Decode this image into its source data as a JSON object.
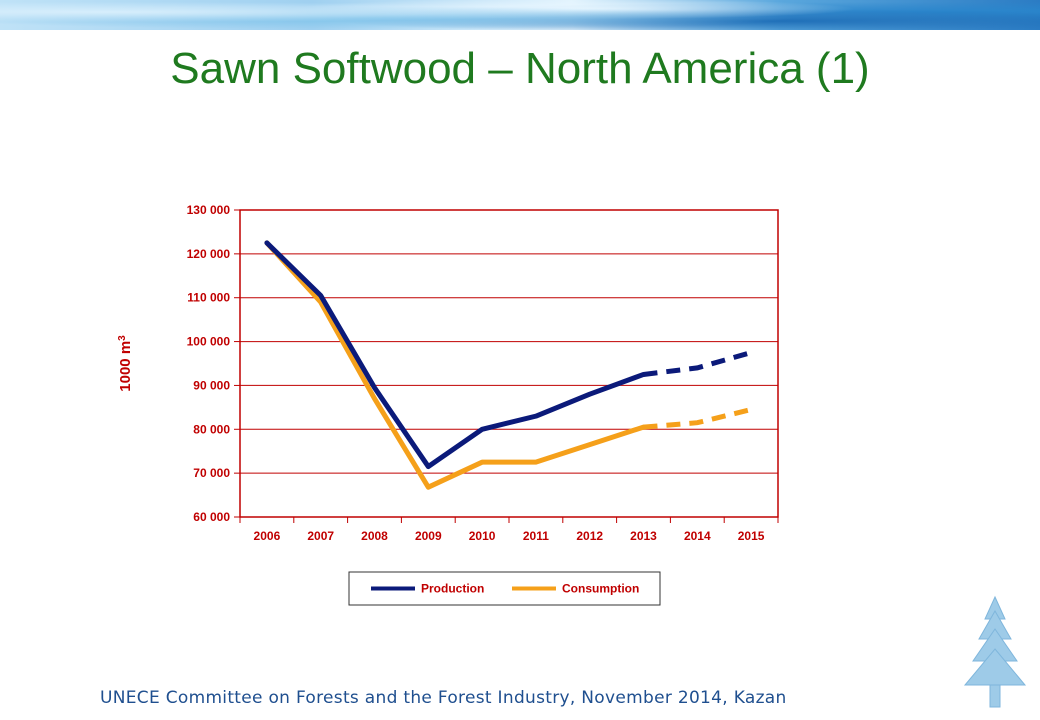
{
  "slide": {
    "title": "Sawn Softwood – North America (1)",
    "footer": "UNECE Committee on Forests and the Forest Industry, November 2014, Kazan"
  },
  "colors": {
    "title": "#1f7a1f",
    "axis": "#c00000",
    "production": "#0b1a7a",
    "consumption": "#f5a01a",
    "footer": "#1f4f8f"
  },
  "chart_data": {
    "type": "line",
    "categories": [
      "2006",
      "2007",
      "2008",
      "2009",
      "2010",
      "2011",
      "2012",
      "2013",
      "2014",
      "2015"
    ],
    "ylabel_main": "1000 m",
    "ylabel_sup": "3",
    "ylim": [
      60000,
      130000
    ],
    "yticks": [
      60000,
      70000,
      80000,
      90000,
      100000,
      110000,
      120000,
      130000
    ],
    "ytick_labels": [
      "60 000",
      "70 000",
      "80 000",
      "90 000",
      "100 000",
      "110 000",
      "120 000",
      "130 000"
    ],
    "grid": true,
    "legend_position": "bottom",
    "projection_start": "2013",
    "series": [
      {
        "name": "Production",
        "color": "#0b1a7a",
        "values": [
          122500,
          110500,
          89500,
          71500,
          80000,
          83000,
          88000,
          92500,
          94000,
          97500
        ]
      },
      {
        "name": "Consumption",
        "color": "#f5a01a",
        "values": [
          122500,
          109000,
          87000,
          66800,
          72500,
          72500,
          76500,
          80500,
          81500,
          84500
        ]
      }
    ]
  }
}
